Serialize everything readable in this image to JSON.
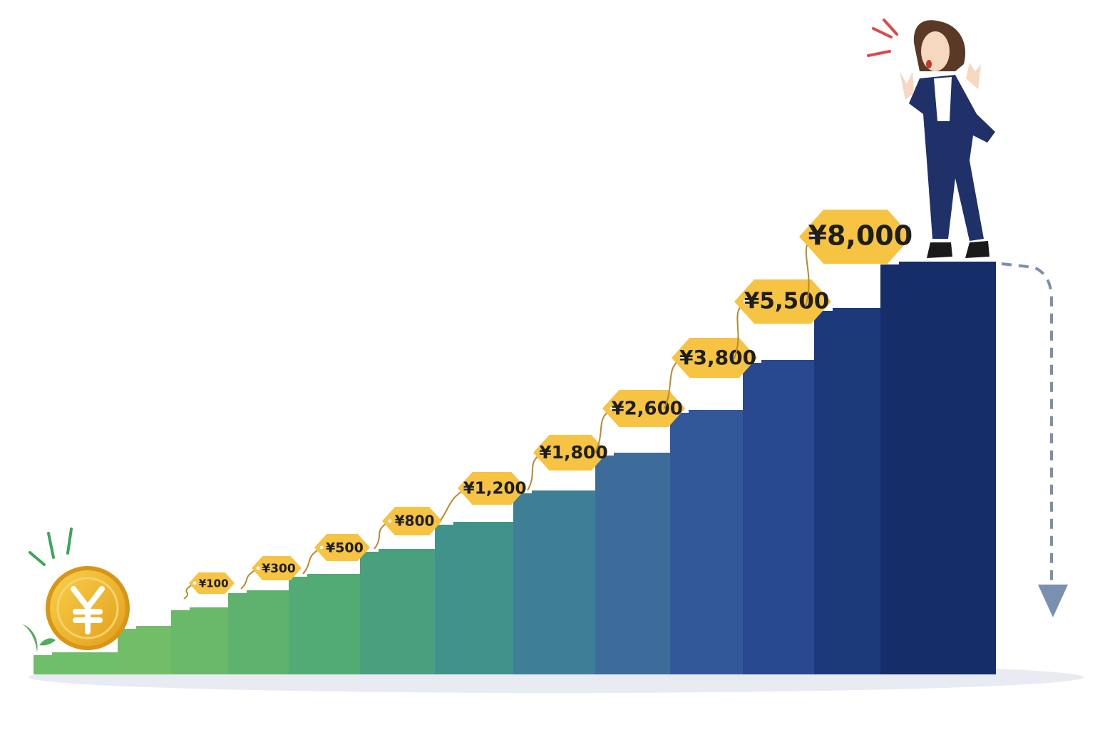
{
  "tags": [
    "¥100",
    "¥300",
    "¥500",
    "¥800",
    "¥1,200",
    "¥1,800",
    "¥2,600",
    "¥3,800",
    "¥5,500",
    "¥8,000"
  ]
}
